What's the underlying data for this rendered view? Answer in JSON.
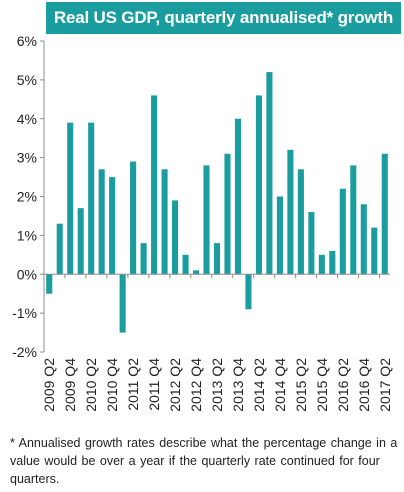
{
  "chart_data": {
    "type": "bar",
    "title": "Real US GDP, quarterly annualised* growth",
    "xlabel": "",
    "ylabel": "",
    "ylim": [
      -2,
      6
    ],
    "ytick_values": [
      -2,
      -1,
      0,
      1,
      2,
      3,
      4,
      5,
      6
    ],
    "ytick_labels": [
      "-2%",
      "-1%",
      "0%",
      "1%",
      "2%",
      "3%",
      "4%",
      "5%",
      "6%"
    ],
    "grid": false,
    "legend": "none",
    "categories": [
      "2009 Q2",
      "2009 Q3",
      "2009 Q4",
      "2010 Q1",
      "2010 Q2",
      "2010 Q3",
      "2010 Q4",
      "2011 Q1",
      "2011 Q2",
      "2011 Q3",
      "2011 Q4",
      "2012 Q1",
      "2012 Q2",
      "2012 Q3",
      "2012 Q4",
      "2013 Q1",
      "2013 Q2",
      "2013 Q3",
      "2013 Q4",
      "2014 Q1",
      "2014 Q2",
      "2014 Q3",
      "2014 Q4",
      "2015 Q1",
      "2015 Q2",
      "2015 Q3",
      "2015 Q4",
      "2016 Q1",
      "2016 Q2",
      "2016 Q3",
      "2016 Q4",
      "2017 Q1",
      "2017 Q2"
    ],
    "values": [
      -0.5,
      1.3,
      3.9,
      1.7,
      3.9,
      2.7,
      2.5,
      -1.5,
      2.9,
      0.8,
      4.6,
      2.7,
      1.9,
      0.5,
      0.1,
      2.8,
      0.8,
      3.1,
      4.0,
      -0.9,
      4.6,
      5.2,
      2.0,
      3.2,
      2.7,
      1.6,
      0.5,
      0.6,
      2.2,
      2.8,
      1.8,
      1.2,
      3.1
    ],
    "x_tick_labels": [
      "2009 Q2",
      "2009 Q4",
      "2010 Q2",
      "2010 Q4",
      "2011 Q2",
      "2011 Q4",
      "2012 Q2",
      "2012 Q4",
      "2013 Q2",
      "2013 Q4",
      "2014 Q2",
      "2014 Q4",
      "2015 Q2",
      "2015 Q4",
      "2016 Q2",
      "2016 Q4",
      "2017 Q2"
    ],
    "bar_color": "#1b9d9f",
    "title_background": "#1b9d9f"
  },
  "footnote": "* Annualised  growth rates describe  what the percentage change in a value would be over a year if the quarterly rate continued  for four quarters."
}
